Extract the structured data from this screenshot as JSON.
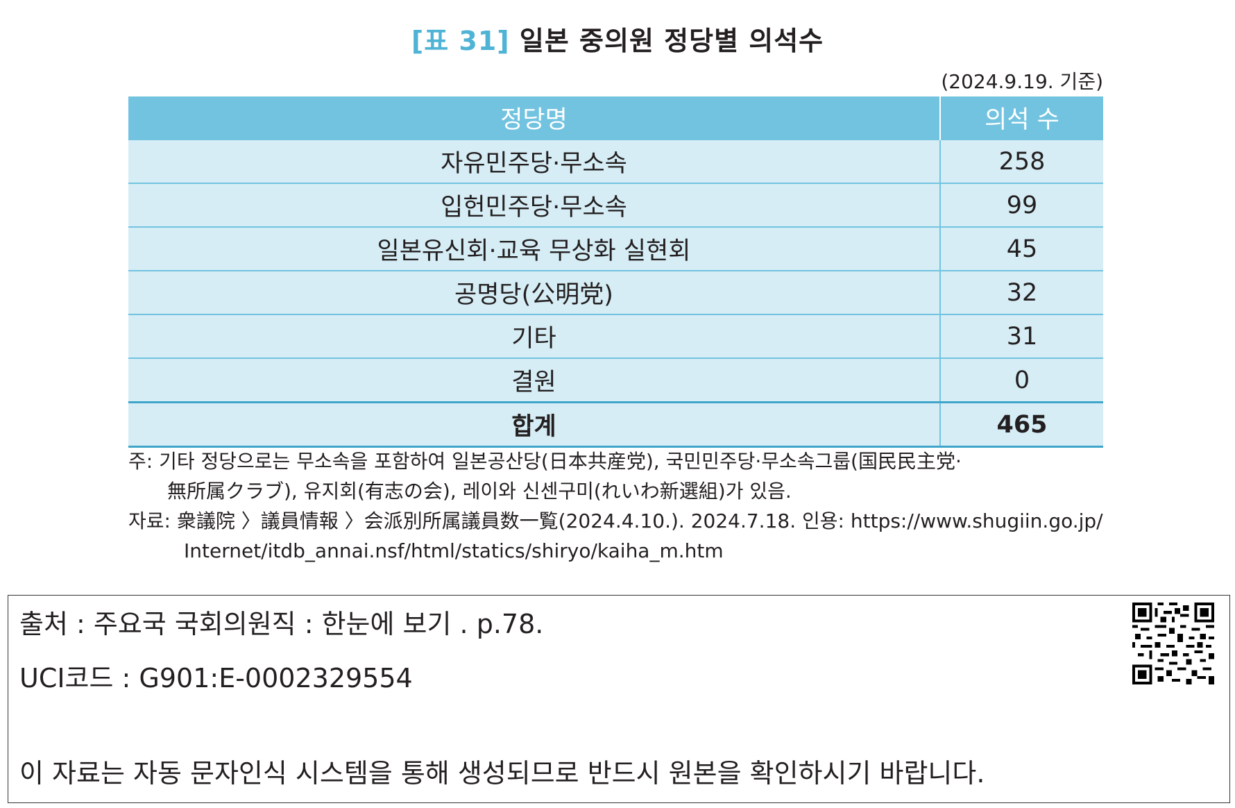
{
  "title": {
    "prefix": "[표 31]",
    "text": "일본 중의원 정당별 의석수"
  },
  "basis": "(2024.9.19. 기준)",
  "table": {
    "headers": [
      "정당명",
      "의석 수"
    ],
    "rows": [
      {
        "party": "자유민주당·무소속",
        "seats": "258"
      },
      {
        "party": "입헌민주당·무소속",
        "seats": "99"
      },
      {
        "party": "일본유신회·교육 무상화 실현회",
        "seats": "45"
      },
      {
        "party": "공명당(公明党)",
        "seats": "32"
      },
      {
        "party": "기타",
        "seats": "31"
      },
      {
        "party": "결원",
        "seats": "0"
      }
    ],
    "total": {
      "party": "합계",
      "seats": "465"
    }
  },
  "notes": {
    "note_line1": "주: 기타 정당으로는 무소속을 포함하여 일본공산당(日本共産党), 국민민주당·무소속그룹(国民民主党·",
    "note_line2": "無所属クラブ), 유지회(有志の会), 레이와 신센구미(れいわ新選組)가 있음.",
    "source_line1": "자료: 衆議院 〉議員情報 〉会派別所属議員数一覧(2024.4.10.). 2024.7.18. 인용: https://www.shugiin.go.jp/",
    "source_line2": "Internet/itdb_annai.nsf/html/statics/shiryo/kaiha_m.htm"
  },
  "source_box": {
    "citation": "출처 : 주요국 국회의원직 : 한눈에 보기 . p.78.",
    "uci": "UCI코드 : G901:E-0002329554",
    "disclaimer": "이 자료는 자동 문자인식 시스템을 통해 생성되므로 반드시 원본을 확인하시기 바랍니다.",
    "qr_icon": "qr-code-icon"
  }
}
